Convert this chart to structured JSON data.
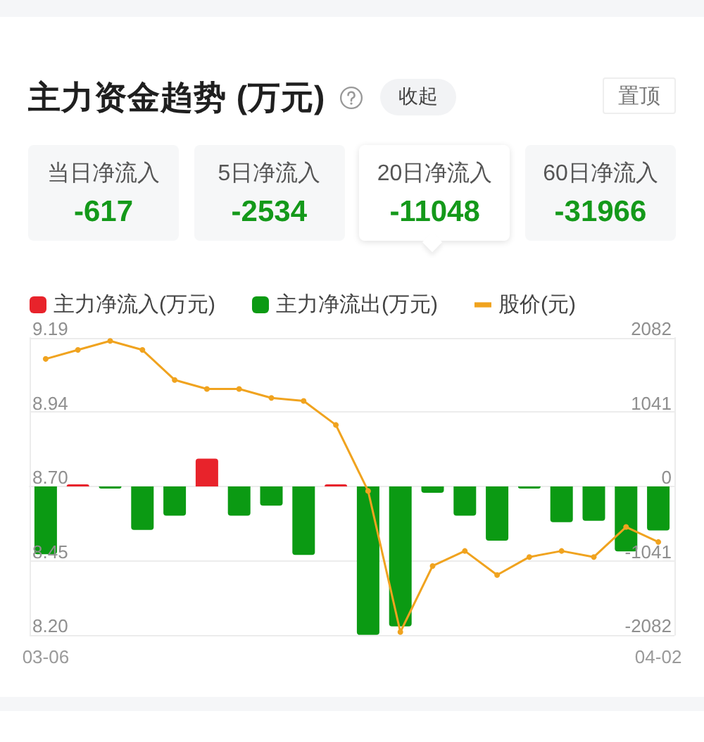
{
  "chart_data": [
    {
      "type": "other",
      "title": "主力资金趋势 (万元)",
      "annotations": [
        "收起",
        "置顶"
      ],
      "categories": [
        "当日净流入",
        "5日净流入",
        "20日净流入",
        "60日净流入"
      ],
      "values": [
        -617,
        -2534,
        -11048,
        -31966
      ],
      "data_labels": true
    },
    {
      "type": "bar",
      "categories": [
        "03-06",
        null,
        null,
        null,
        null,
        null,
        null,
        null,
        null,
        null,
        null,
        null,
        null,
        null,
        null,
        null,
        null,
        null,
        null,
        "04-02"
      ],
      "series": [
        {
          "name": "主力净流入(万元)",
          "color": "#e8232b",
          "axis": "y2",
          "values": [
            null,
            30,
            null,
            null,
            null,
            390,
            null,
            null,
            null,
            30,
            null,
            null,
            null,
            null,
            null,
            null,
            null,
            null,
            null,
            null
          ]
        },
        {
          "name": "主力净流出(万元)",
          "color": "#0b9a13",
          "axis": "y2",
          "values": [
            -950,
            null,
            -30,
            -610,
            -410,
            null,
            -410,
            -270,
            -960,
            null,
            -2080,
            -1960,
            -90,
            -410,
            -760,
            -30,
            -500,
            -480,
            -910,
            -617
          ]
        },
        {
          "name": "股价(元)",
          "type": "line",
          "color": "#f0a31f",
          "values": [
            9.12,
            9.15,
            9.18,
            9.15,
            9.05,
            9.02,
            9.02,
            8.99,
            8.98,
            8.9,
            8.68,
            8.21,
            8.43,
            8.48,
            8.4,
            8.46,
            8.48,
            8.46,
            8.56,
            8.51
          ]
        }
      ],
      "ylim": [
        8.2,
        9.19
      ],
      "yticks": [
        {
          "value": 8.2,
          "label": "8.20"
        },
        {
          "value": 8.4475,
          "label": "8.45"
        },
        {
          "value": 8.695,
          "label": "8.70"
        },
        {
          "value": 8.9425,
          "label": "8.94"
        },
        {
          "value": 9.19,
          "label": "9.19"
        }
      ],
      "y2lim": [
        -2082,
        2082
      ],
      "y2ticks": [
        -2082,
        -1041,
        0,
        1041,
        2082
      ],
      "grid": "y",
      "legend": "top left",
      "marker": "circle"
    }
  ]
}
